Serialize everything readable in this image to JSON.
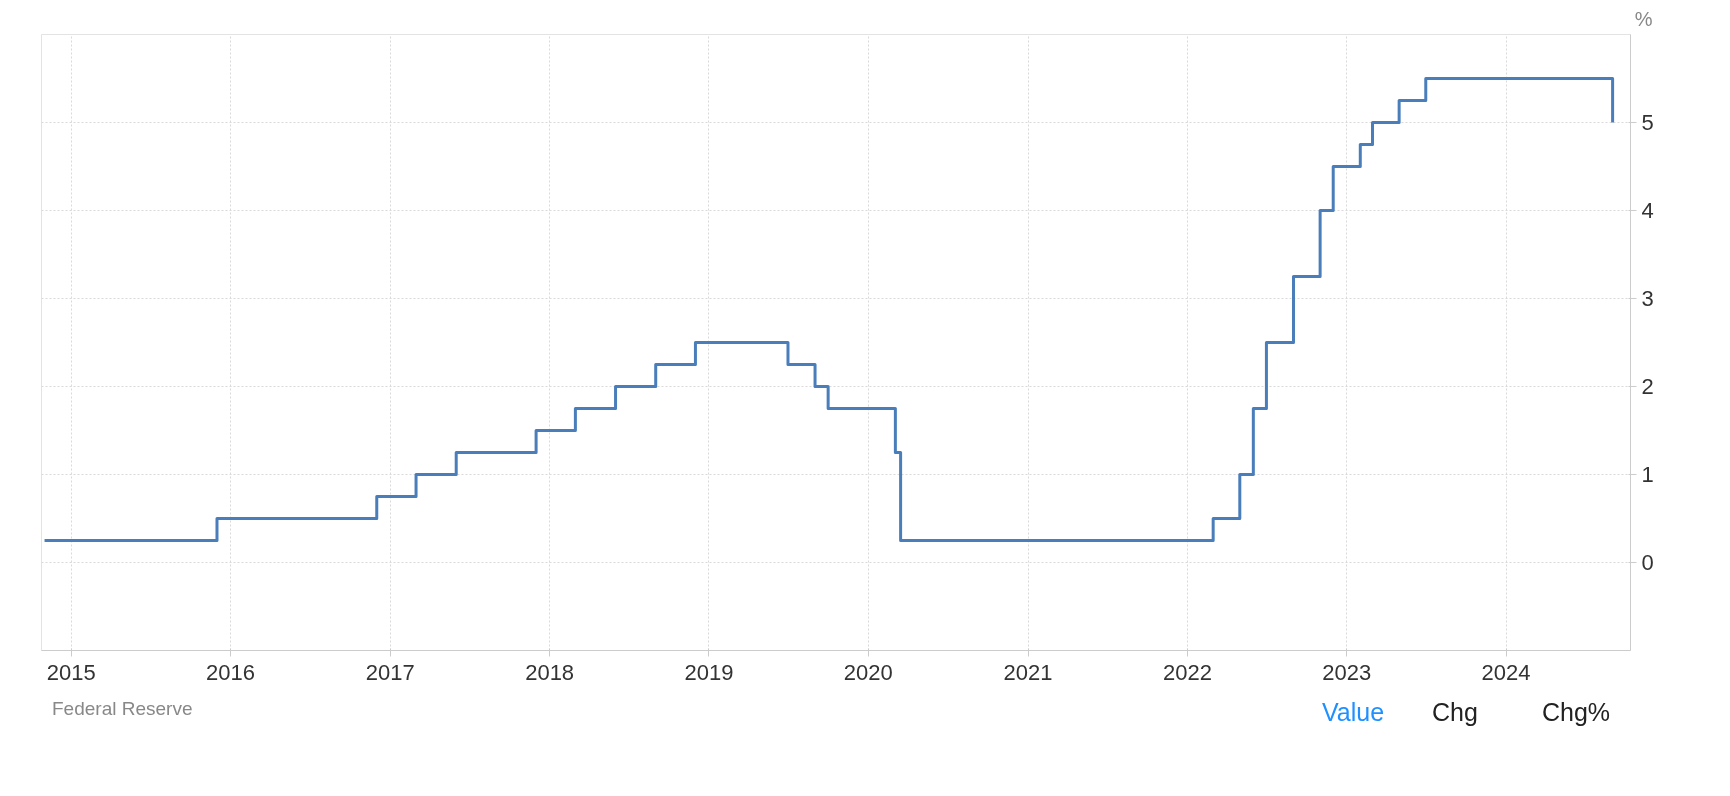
{
  "chart_data": {
    "type": "step",
    "ylabel": "%",
    "x": [
      "2014-11",
      "2015-12",
      "2016-12",
      "2017-03",
      "2017-06",
      "2017-12",
      "2018-03",
      "2018-06",
      "2018-09",
      "2018-12",
      "2019-07",
      "2019-09",
      "2019-10",
      "2020-03-03",
      "2020-03-15",
      "2022-03",
      "2022-05",
      "2022-06",
      "2022-07",
      "2022-09",
      "2022-11",
      "2022-12",
      "2023-02",
      "2023-03",
      "2023-05",
      "2023-07",
      "2024-09"
    ],
    "series": [
      {
        "color": "#4a7ebb",
        "values": [
          0.25,
          0.5,
          0.75,
          1.0,
          1.25,
          1.5,
          1.75,
          2.0,
          2.25,
          2.5,
          2.25,
          2.0,
          1.75,
          1.25,
          0.25,
          0.5,
          1.0,
          1.75,
          2.5,
          3.25,
          4.0,
          4.5,
          4.75,
          5.0,
          5.25,
          5.5,
          5.0
        ]
      }
    ],
    "xlim": [
      "2014-10-25",
      "2024-10-12"
    ],
    "xticks": [
      "2015",
      "2016",
      "2017",
      "2018",
      "2019",
      "2020",
      "2021",
      "2022",
      "2023",
      "2024"
    ],
    "ylim": [
      -1,
      6
    ],
    "yticks": [
      0,
      1,
      2,
      3,
      4,
      5
    ],
    "grid": true,
    "marker": "none",
    "line_style": "solid",
    "annotations": [
      "Federal Reserve",
      "Value",
      "Chg",
      "Chg%"
    ]
  }
}
